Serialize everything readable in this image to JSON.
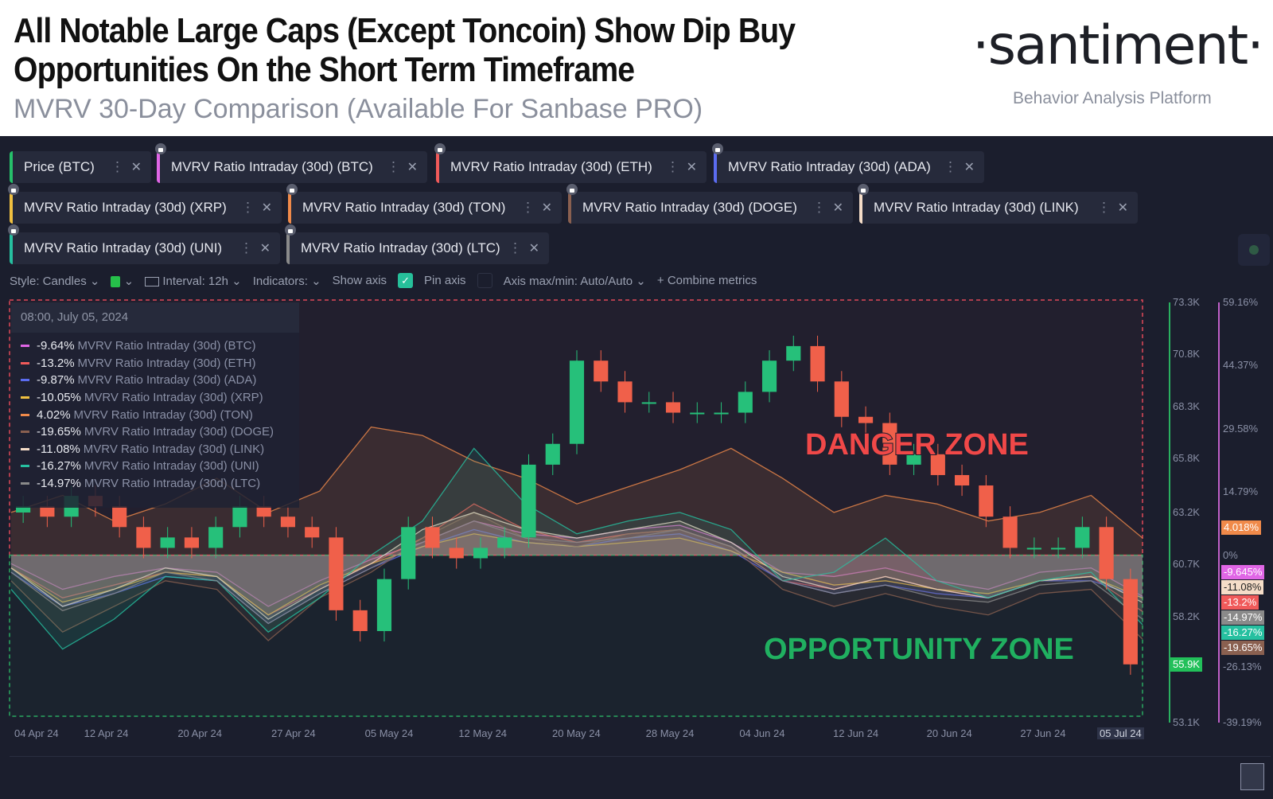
{
  "header": {
    "title": "All Notable Large Caps (Except Toncoin) Show Dip Buy Opportunities On the Short Term Timeframe",
    "subtitle": "MVRV 30-Day Comparison (Available For Sanbase PRO)",
    "logo": "·santiment·",
    "logo_sub": "Behavior Analysis Platform"
  },
  "metrics": [
    {
      "label": "Price (BTC)",
      "color": "#26c06a"
    },
    {
      "label": "MVRV Ratio Intraday (30d) (BTC)",
      "color": "#e066e6"
    },
    {
      "label": "MVRV Ratio Intraday (30d) (ETH)",
      "color": "#f05a5a"
    },
    {
      "label": "MVRV Ratio Intraday (30d) (ADA)",
      "color": "#5b6cf0"
    },
    {
      "label": "MVRV Ratio Intraday (30d) (XRP)",
      "color": "#f0c040"
    },
    {
      "label": "MVRV Ratio Intraday (30d) (TON)",
      "color": "#f08a4a"
    },
    {
      "label": "MVRV Ratio Intraday (30d) (DOGE)",
      "color": "#8a6050"
    },
    {
      "label": "MVRV Ratio Intraday (30d) (LINK)",
      "color": "#f5ddc8"
    },
    {
      "label": "MVRV Ratio Intraday (30d) (UNI)",
      "color": "#26c0a0"
    },
    {
      "label": "MVRV Ratio Intraday (30d) (LTC)",
      "color": "#8a8a8a"
    }
  ],
  "toolbar": {
    "style": "Style: Candles",
    "interval": "Interval: 12h",
    "indicators": "Indicators:",
    "show_axis": "Show axis",
    "pin_axis": "Pin axis",
    "axis_maxmin": "Axis max/min: Auto/Auto",
    "combine": "Combine metrics"
  },
  "legend": {
    "timestamp": "08:00, July 05, 2024",
    "rows": [
      {
        "value": "-9.64%",
        "name": "MVRV Ratio Intraday (30d) (BTC)",
        "color": "#e066e6"
      },
      {
        "value": "-13.2%",
        "name": "MVRV Ratio Intraday (30d) (ETH)",
        "color": "#f05a5a"
      },
      {
        "value": "-9.87%",
        "name": "MVRV Ratio Intraday (30d) (ADA)",
        "color": "#5b6cf0"
      },
      {
        "value": "-10.05%",
        "name": "MVRV Ratio Intraday (30d) (XRP)",
        "color": "#f0c040"
      },
      {
        "value": "4.02%",
        "name": "MVRV Ratio Intraday (30d) (TON)",
        "color": "#f08a4a"
      },
      {
        "value": "-19.65%",
        "name": "MVRV Ratio Intraday (30d) (DOGE)",
        "color": "#8a6050"
      },
      {
        "value": "-11.08%",
        "name": "MVRV Ratio Intraday (30d) (LINK)",
        "color": "#f5ddc8"
      },
      {
        "value": "-16.27%",
        "name": "MVRV Ratio Intraday (30d) (UNI)",
        "color": "#26c0a0"
      },
      {
        "value": "-14.97%",
        "name": "MVRV Ratio Intraday (30d) (LTC)",
        "color": "#8a8a8a"
      }
    ]
  },
  "zones": {
    "danger": "DANGER ZONE",
    "opportunity": "OPPORTUNITY ZONE"
  },
  "chart_data": {
    "type": "line",
    "title": "MVRV 30-Day Comparison",
    "price_axis": {
      "ticks": [
        "73.3K",
        "70.8K",
        "68.3K",
        "65.8K",
        "63.2K",
        "60.7K",
        "58.2K",
        "53.1K"
      ],
      "range": [
        53100,
        73300
      ],
      "last": "55.9K"
    },
    "pct_axis": {
      "ticks": [
        "59.16%",
        "44.37%",
        "29.58%",
        "14.79%",
        "0%",
        "-26.13%",
        "-39.19%"
      ],
      "range": [
        -39.19,
        59.16
      ]
    },
    "pct_tags": [
      {
        "text": "4.018%",
        "color": "#f08a4a"
      },
      {
        "text": "-9.645%",
        "color": "#e066e6"
      },
      {
        "text": "-11.08%",
        "color": "#f5ddc8"
      },
      {
        "text": "-13.2%",
        "color": "#f05a5a"
      },
      {
        "text": "-14.97%",
        "color": "#8a8a8a"
      },
      {
        "text": "-16.27%",
        "color": "#26c0a0"
      },
      {
        "text": "-19.65%",
        "color": "#8a6050"
      }
    ],
    "x_ticks": [
      "04 Apr 24",
      "12 Apr 24",
      "20 Apr 24",
      "27 Apr 24",
      "05 May 24",
      "12 May 24",
      "20 May 24",
      "28 May 24",
      "04 Jun 24",
      "12 Jun 24",
      "20 Jun 24",
      "27 Jun 24",
      "05 Jul 24"
    ],
    "price_close_every_2d": [
      63.5,
      63,
      64,
      63.5,
      62.5,
      61.5,
      62,
      61.5,
      62.5,
      63.5,
      63,
      62.5,
      62,
      58.5,
      57.5,
      60,
      62.5,
      61.5,
      61,
      61.5,
      62,
      65.5,
      66.5,
      70.5,
      69.5,
      68.5,
      68.5,
      68,
      68,
      68,
      69,
      70.5,
      71.2,
      69.5,
      67.8,
      67.5,
      65.5,
      66,
      65,
      64.5,
      63,
      61.5,
      61.5,
      61.5,
      62.5,
      60,
      55.9
    ],
    "mvrv_every_4d": [
      {
        "name": "BTC",
        "values": [
          -2,
          -8,
          -5,
          -3,
          -4,
          -12,
          -6,
          -1,
          3,
          8,
          5,
          4,
          6,
          7,
          3,
          -4,
          -5,
          -3,
          -6,
          -8,
          -4,
          -3,
          -9.64
        ]
      },
      {
        "name": "ETH",
        "values": [
          -3,
          -10,
          -7,
          -4,
          -5,
          -14,
          -8,
          -2,
          4,
          12,
          6,
          3,
          5,
          6,
          2,
          -6,
          -8,
          -5,
          -8,
          -10,
          -6,
          -5,
          -13.2
        ]
      },
      {
        "name": "ADA",
        "values": [
          -4,
          -12,
          -9,
          -5,
          -6,
          -16,
          -9,
          -3,
          2,
          6,
          3,
          2,
          4,
          5,
          1,
          -6,
          -9,
          -7,
          -9,
          -10,
          -6,
          -6,
          -9.87
        ]
      },
      {
        "name": "XRP",
        "values": [
          -3,
          -11,
          -8,
          -4,
          -5,
          -14,
          -7,
          -2,
          2,
          5,
          3,
          2,
          3,
          4,
          1,
          -4,
          -7,
          -6,
          -8,
          -9,
          -6,
          -5,
          -10.05
        ]
      },
      {
        "name": "TON",
        "values": [
          10,
          14,
          8,
          12,
          18,
          10,
          15,
          30,
          28,
          22,
          18,
          12,
          16,
          20,
          25,
          18,
          10,
          14,
          12,
          8,
          10,
          14,
          4.02
        ]
      },
      {
        "name": "DOGE",
        "values": [
          -6,
          -18,
          -12,
          -6,
          -8,
          -20,
          -10,
          -4,
          4,
          10,
          4,
          2,
          5,
          6,
          2,
          -8,
          -12,
          -9,
          -12,
          -14,
          -9,
          -8,
          -19.65
        ]
      },
      {
        "name": "LINK",
        "values": [
          -3,
          -12,
          -8,
          -3,
          -5,
          -15,
          -8,
          -2,
          6,
          10,
          6,
          4,
          6,
          8,
          3,
          -5,
          -8,
          -5,
          -8,
          -10,
          -6,
          -5,
          -11.08
        ]
      },
      {
        "name": "UNI",
        "values": [
          -8,
          -22,
          -15,
          -5,
          -6,
          -18,
          -10,
          0,
          8,
          25,
          12,
          5,
          8,
          10,
          6,
          -6,
          -4,
          4,
          -6,
          -10,
          -6,
          -4,
          -16.27
        ]
      },
      {
        "name": "LTC",
        "values": [
          -4,
          -13,
          -9,
          -4,
          -6,
          -16,
          -9,
          -3,
          3,
          8,
          4,
          3,
          4,
          6,
          2,
          -6,
          -9,
          -7,
          -10,
          -11,
          -7,
          -6,
          -14.97
        ]
      }
    ]
  }
}
